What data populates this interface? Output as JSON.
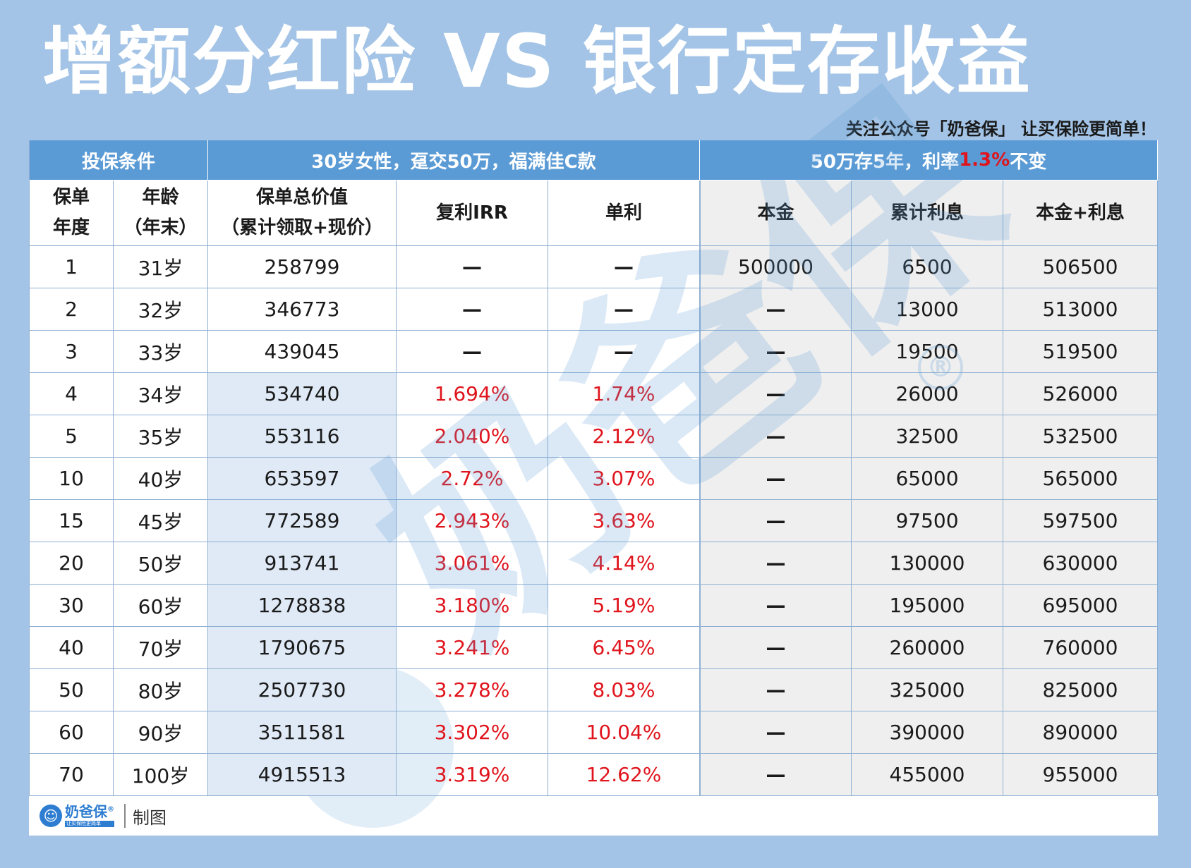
{
  "title": "增额分红险 VS  银行定存收益",
  "follow": "关注公众号「奶爸保」 让买保险更简单！",
  "header": {
    "conditions": "投保条件",
    "policy_desc": "30岁女性，趸交50万，福满佳C款",
    "bank_pre": "50万存5年，利率",
    "bank_rate": "1.3%",
    "bank_post": "不变"
  },
  "columns": {
    "policy_year_line1": "保单",
    "policy_year_line2": "年度",
    "age_line1": "年龄",
    "age_line2": "（年末）",
    "total_value_line1": "保单总价值",
    "total_value_line2": "（累计领取+现价）",
    "irr": "复利IRR",
    "simple": "单利",
    "principal": "本金",
    "interest": "累计利息",
    "total": "本金+利息"
  },
  "rows": [
    {
      "year": "1",
      "age": "31岁",
      "value": "258799",
      "irr": "—",
      "simple": "—",
      "principal": "500000",
      "interest": "6500",
      "total": "506500"
    },
    {
      "year": "2",
      "age": "32岁",
      "value": "346773",
      "irr": "—",
      "simple": "—",
      "principal": "—",
      "interest": "13000",
      "total": "513000"
    },
    {
      "year": "3",
      "age": "33岁",
      "value": "439045",
      "irr": "—",
      "simple": "—",
      "principal": "—",
      "interest": "19500",
      "total": "519500"
    },
    {
      "year": "4",
      "age": "34岁",
      "value": "534740",
      "irr": "1.694%",
      "simple": "1.74%",
      "principal": "—",
      "interest": "26000",
      "total": "526000"
    },
    {
      "year": "5",
      "age": "35岁",
      "value": "553116",
      "irr": "2.040%",
      "simple": "2.12%",
      "principal": "—",
      "interest": "32500",
      "total": "532500"
    },
    {
      "year": "10",
      "age": "40岁",
      "value": "653597",
      "irr": "2.72%",
      "simple": "3.07%",
      "principal": "—",
      "interest": "65000",
      "total": "565000"
    },
    {
      "year": "15",
      "age": "45岁",
      "value": "772589",
      "irr": "2.943%",
      "simple": "3.63%",
      "principal": "—",
      "interest": "97500",
      "total": "597500"
    },
    {
      "year": "20",
      "age": "50岁",
      "value": "913741",
      "irr": "3.061%",
      "simple": "4.14%",
      "principal": "—",
      "interest": "130000",
      "total": "630000"
    },
    {
      "year": "30",
      "age": "60岁",
      "value": "1278838",
      "irr": "3.180%",
      "simple": "5.19%",
      "principal": "—",
      "interest": "195000",
      "total": "695000"
    },
    {
      "year": "40",
      "age": "70岁",
      "value": "1790675",
      "irr": "3.241%",
      "simple": "6.45%",
      "principal": "—",
      "interest": "260000",
      "total": "760000"
    },
    {
      "year": "50",
      "age": "80岁",
      "value": "2507730",
      "irr": "3.278%",
      "simple": "8.03%",
      "principal": "—",
      "interest": "325000",
      "total": "825000"
    },
    {
      "year": "60",
      "age": "90岁",
      "value": "3511581",
      "irr": "3.302%",
      "simple": "10.04%",
      "principal": "—",
      "interest": "390000",
      "total": "890000"
    },
    {
      "year": "70",
      "age": "100岁",
      "value": "4915513",
      "irr": "3.319%",
      "simple": "12.62%",
      "principal": "—",
      "interest": "455000",
      "total": "955000"
    }
  ],
  "footer": {
    "logo_name": "奶爸保",
    "logo_reg": "®",
    "logo_sub": "让买保险更简单",
    "made_by": "制图"
  },
  "watermark": {
    "text": "奶爸保",
    "reg": "®"
  },
  "colors": {
    "background": "#a3c4e6",
    "header_blue": "#5b9bd5",
    "highlight_red": "#e0141c",
    "value_column_bg": "#dfeaf6",
    "bank_section_bg": "#efefef"
  }
}
